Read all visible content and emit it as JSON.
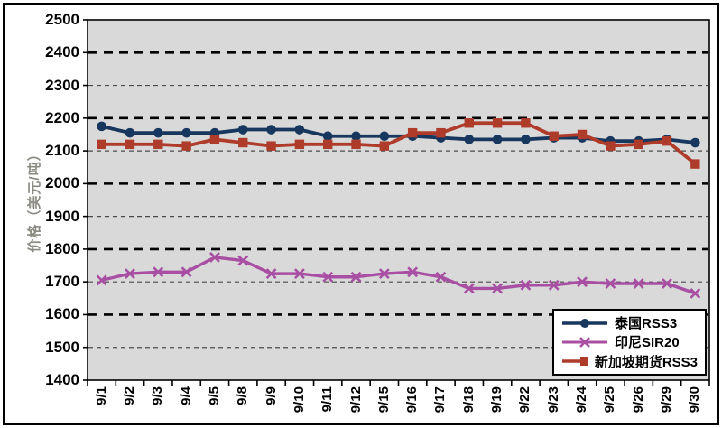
{
  "chart_data": {
    "type": "line",
    "title": "",
    "xlabel": "",
    "ylabel": "价格（美元/吨）",
    "ylim": [
      1400,
      2500
    ],
    "y_tick_step": 100,
    "y_tick_labels": [
      "2500",
      "2400",
      "2300",
      "2200",
      "2100",
      "2000",
      "1900",
      "1800",
      "1700",
      "1600",
      "1500",
      "1400"
    ],
    "grid": "horizontal dashed, heavy at even hundreds, light at odd hundreds",
    "legend_position": "inside-bottom-right",
    "plot_bg_color": "#D9D9D9",
    "axis_text_color": "#000000",
    "ylabel_color": "#8B8B83",
    "categories": [
      "9/1",
      "9/2",
      "9/3",
      "9/4",
      "9/5",
      "9/8",
      "9/9",
      "9/10",
      "9/11",
      "9/12",
      "9/15",
      "9/16",
      "9/17",
      "9/18",
      "9/19",
      "9/22",
      "9/23",
      "9/24",
      "9/25",
      "9/26",
      "9/29",
      "9/30"
    ],
    "series": [
      {
        "name": "泰国RSS3",
        "color": "#17375E",
        "marker": "circle",
        "values": [
          2175,
          2155,
          2155,
          2155,
          2155,
          2165,
          2165,
          2165,
          2145,
          2145,
          2145,
          2145,
          2140,
          2135,
          2135,
          2135,
          2140,
          2140,
          2130,
          2130,
          2135,
          2125
        ]
      },
      {
        "name": "印尼SIR20",
        "color": "#A84FA3",
        "marker": "x",
        "values": [
          1705,
          1725,
          1730,
          1730,
          1775,
          1765,
          1725,
          1725,
          1715,
          1715,
          1725,
          1730,
          1715,
          1680,
          1680,
          1690,
          1690,
          1700,
          1695,
          1695,
          1695,
          1665
        ]
      },
      {
        "name": "新加坡期货RSS3",
        "color": "#AF3B2A",
        "marker": "square",
        "values": [
          2120,
          2120,
          2120,
          2115,
          2135,
          2125,
          2115,
          2120,
          2120,
          2120,
          2115,
          2155,
          2155,
          2185,
          2185,
          2185,
          2145,
          2150,
          2115,
          2120,
          2130,
          2060
        ]
      }
    ]
  }
}
